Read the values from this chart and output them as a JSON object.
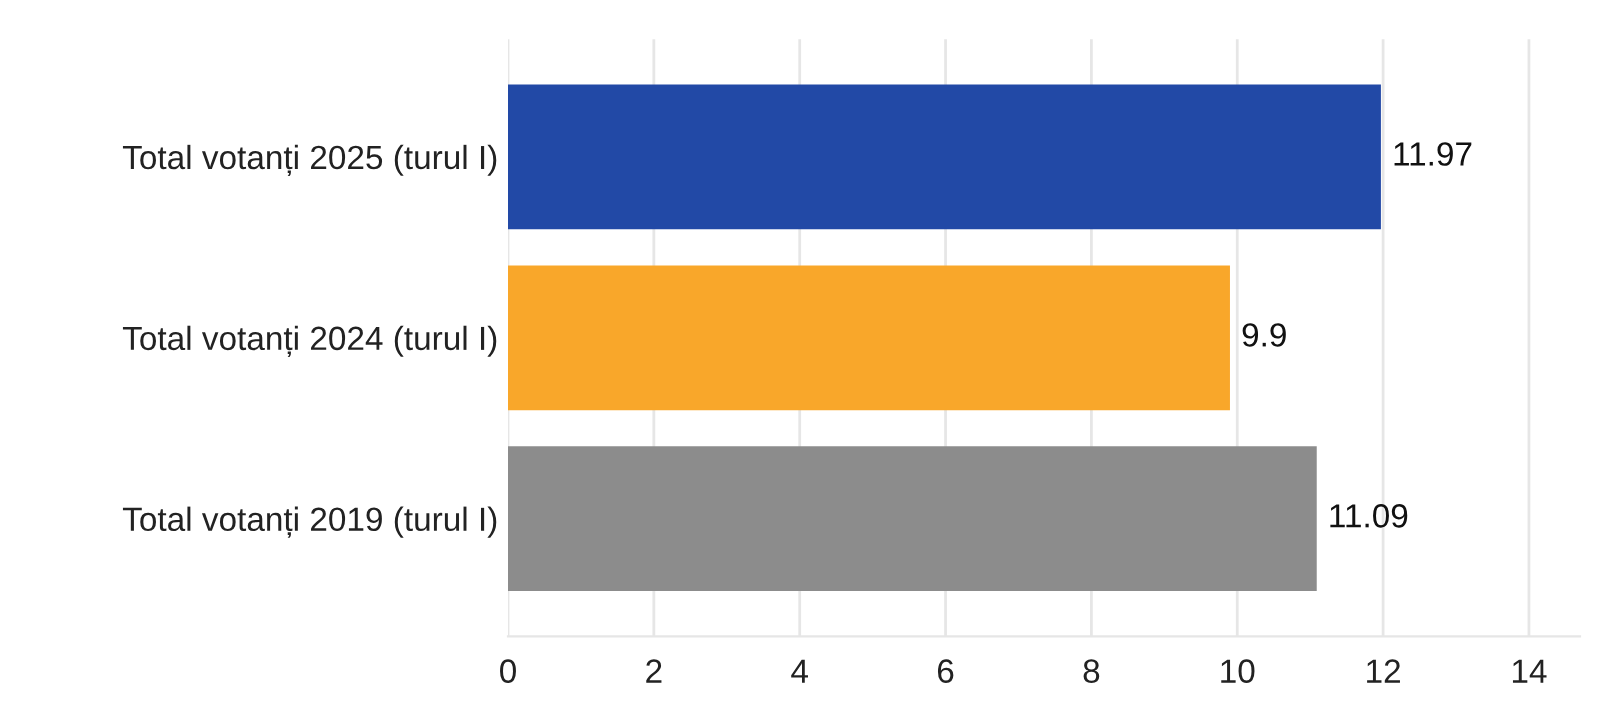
{
  "chart_data": {
    "type": "bar",
    "orientation": "horizontal",
    "categories": [
      "Total votanți 2025 (turul I)",
      "Total votanți 2024 (turul I)",
      "Total votanți 2019 (turul I)"
    ],
    "values": [
      11.97,
      9.9,
      11.09
    ],
    "colors": [
      "#2249a6",
      "#f9a72a",
      "#8c8c8c"
    ],
    "xlim": [
      0,
      14.7
    ],
    "xticks": [
      0,
      2,
      4,
      6,
      8,
      10,
      12,
      14
    ],
    "grid": "x",
    "data_labels": true
  }
}
